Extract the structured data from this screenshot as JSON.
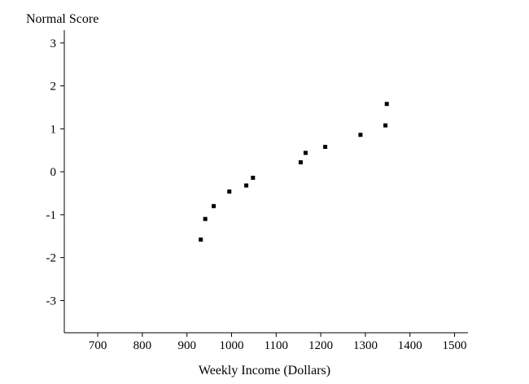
{
  "chart_data": {
    "type": "scatter",
    "title": "",
    "xlabel": "Weekly Income (Dollars)",
    "ylabel": "Normal Score",
    "xlim": [
      625,
      1530
    ],
    "ylim": [
      -3.75,
      3.3
    ],
    "x_ticks": [
      "700",
      "800",
      "900",
      "1000",
      "1100",
      "1200",
      "1300",
      "1400",
      "1500"
    ],
    "y_ticks": [
      "3",
      "2",
      "1",
      "0",
      "-1",
      "-2",
      "-3"
    ],
    "grid": false,
    "series": [
      {
        "x": [
          931,
          941,
          960,
          995,
          1033,
          1048,
          1155,
          1166,
          1210,
          1289,
          1345,
          1348
        ],
        "y": [
          -1.58,
          -1.1,
          -0.8,
          -0.46,
          -0.32,
          -0.14,
          0.22,
          0.44,
          0.58,
          0.86,
          1.08,
          1.58
        ]
      }
    ]
  }
}
